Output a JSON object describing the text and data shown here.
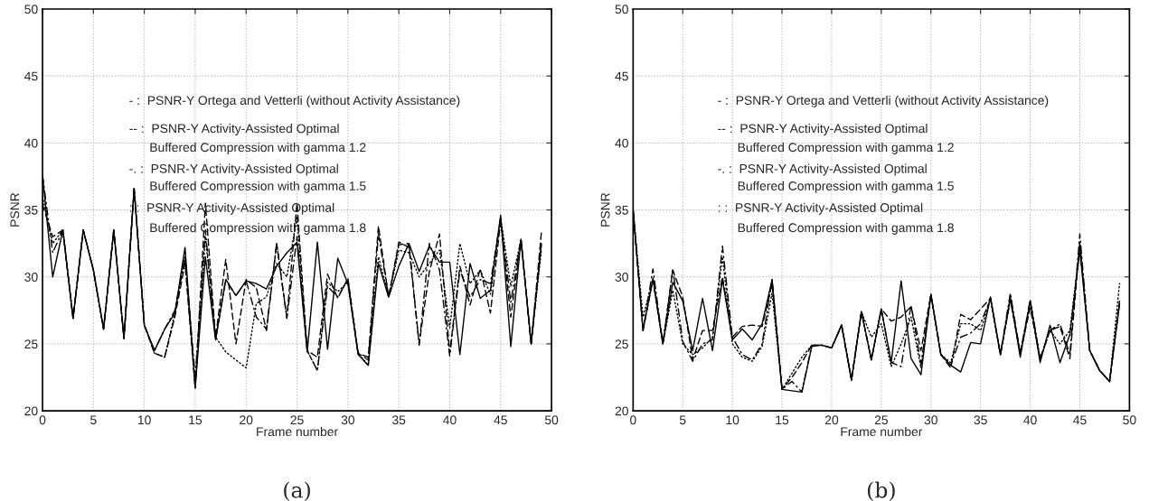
{
  "chart_data": [
    {
      "type": "line",
      "title": "(a)",
      "xlabel": "Frame number",
      "ylabel": "PSNR",
      "xlim": [
        0,
        50
      ],
      "ylim": [
        20,
        50
      ],
      "xticks": [
        0,
        5,
        10,
        15,
        20,
        25,
        30,
        35,
        40,
        45,
        50
      ],
      "yticks": [
        20,
        25,
        30,
        35,
        40,
        45,
        50
      ],
      "grid": true,
      "annotations": [
        "- :  PSNR-Y Ortega and Vetterli (without Activity Assistance)",
        "-- :  PSNR-Y Activity-Assisted Optimal",
        "Buffered Compression with gamma 1.2",
        "-. :  PSNR-Y Activity-Assisted Optimal",
        "Buffered Compression with gamma 1.5",
        ": :  PSNR-Y Activity-Assisted Optimal",
        "Buffered Compression with gamma 1.8"
      ],
      "x": [
        0,
        1,
        2,
        3,
        4,
        5,
        6,
        7,
        8,
        9,
        10,
        11,
        12,
        13,
        14,
        15,
        16,
        17,
        18,
        19,
        20,
        21,
        22,
        23,
        24,
        25,
        26,
        27,
        28,
        29,
        30,
        31,
        32,
        33,
        34,
        35,
        36,
        37,
        38,
        39,
        40,
        41,
        42,
        43,
        44,
        45,
        46,
        47,
        48,
        49
      ],
      "series": [
        {
          "color": "#000000",
          "line_style": "solid",
          "values": [
            37.6,
            30,
            33.5,
            26.9,
            33.5,
            30.5,
            26.1,
            33.5,
            25.4,
            36.6,
            26.4,
            24.5,
            26.1,
            27.3,
            32.2,
            21.7,
            31.5,
            25.3,
            29.8,
            28.6,
            29.7,
            29.5,
            29.1,
            30.8,
            31.8,
            32.6,
            24.4,
            32.6,
            24.6,
            31.4,
            29.5,
            24.2,
            23.4,
            31.0,
            28.5,
            30.8,
            32.5,
            30.4,
            32.3,
            31.1,
            31.1,
            24.2,
            31.0,
            28.4,
            29.0,
            34.6,
            24.8,
            32.8,
            25.0,
            32.4
          ]
        },
        {
          "color": "#000000",
          "line_style": "dashed",
          "values": [
            35.4,
            33,
            33.5,
            26.9,
            33.5,
            30.5,
            26.1,
            33.5,
            25.4,
            36.6,
            26.4,
            24.3,
            24.0,
            27,
            31.0,
            21.7,
            35.5,
            25.5,
            31.3,
            25,
            29.8,
            29.2,
            26,
            32.5,
            27,
            35.5,
            24.5,
            24,
            30.2,
            28.4,
            29.9,
            24.3,
            24,
            33.8,
            28.5,
            32.6,
            32.2,
            25,
            30.4,
            33.2,
            24.3,
            30.8,
            27.9,
            30.6,
            27.3,
            34.2,
            27,
            32.8,
            25,
            33.3
          ]
        },
        {
          "color": "#000000",
          "line_style": "dashdot",
          "values": [
            37.6,
            31.8,
            33.5,
            26.9,
            33.5,
            30.5,
            26.1,
            33.5,
            25.4,
            36.6,
            26.4,
            24.5,
            26.1,
            27.5,
            31.5,
            22.5,
            33.5,
            25.3,
            29.8,
            28.6,
            29.7,
            27,
            26.1,
            32.5,
            26.9,
            33,
            24.5,
            23,
            29.3,
            28.5,
            29.8,
            24.3,
            23.8,
            33.2,
            28.5,
            32.4,
            32.5,
            24.9,
            32.5,
            30.5,
            24.1,
            30.5,
            28.5,
            29.8,
            29.5,
            34.4,
            28.1,
            32.8,
            25,
            32.5
          ]
        },
        {
          "color": "#000000",
          "line_style": "dotted",
          "values": [
            36,
            32.5,
            33.5,
            26.9,
            33.5,
            30.5,
            26.1,
            33.5,
            25.4,
            36.6,
            26.4,
            24.3,
            24.0,
            27.3,
            31.5,
            21.7,
            33,
            25.5,
            24.4,
            23.8,
            23.2,
            28,
            28.5,
            31,
            30,
            34.5,
            24.5,
            23.0,
            29.6,
            28.9,
            29.6,
            24.3,
            23.4,
            31.5,
            28.5,
            32.0,
            31.8,
            30.0,
            31,
            32,
            26.2,
            32.5,
            29.5,
            30.5,
            28.7,
            34.4,
            29.3,
            32.8,
            25,
            32
          ]
        }
      ]
    },
    {
      "type": "line",
      "title": "(b)",
      "xlabel": "Frame number",
      "ylabel": "PSNR",
      "xlim": [
        0,
        50
      ],
      "ylim": [
        20,
        50
      ],
      "xticks": [
        0,
        5,
        10,
        15,
        20,
        25,
        30,
        35,
        40,
        45,
        50
      ],
      "yticks": [
        20,
        25,
        30,
        35,
        40,
        45,
        50
      ],
      "grid": true,
      "annotations": [
        "- :  PSNR-Y Ortega and Vetterli (without Activity Assistance)",
        "-- :  PSNR-Y Activity-Assisted Optimal",
        "Buffered Compression with gamma 1.2",
        "-. :  PSNR-Y Activity-Assisted Optimal",
        "Buffered Compression with gamma 1.5",
        ": :  PSNR-Y Activity-Assisted Optimal",
        "Buffered Compression with gamma 1.8"
      ],
      "x": [
        0,
        1,
        2,
        3,
        4,
        5,
        6,
        7,
        8,
        9,
        10,
        11,
        12,
        13,
        14,
        15,
        16,
        17,
        18,
        19,
        20,
        21,
        22,
        23,
        24,
        25,
        26,
        27,
        28,
        29,
        30,
        31,
        32,
        33,
        34,
        35,
        36,
        37,
        38,
        39,
        40,
        41,
        42,
        43,
        44,
        45,
        46,
        47,
        48,
        49
      ],
      "series": [
        {
          "color": "#000000",
          "line_style": "solid",
          "values": [
            35,
            26,
            29.9,
            25,
            29.6,
            28.2,
            24.5,
            28.4,
            24.5,
            29.8,
            25.3,
            26.1,
            25.3,
            26.5,
            29.8,
            21.6,
            21.5,
            21.4,
            24.8,
            24.9,
            24.7,
            26.4,
            22.3,
            27.4,
            23.8,
            27.6,
            23.6,
            29.7,
            23.9,
            22.7,
            28.7,
            24.2,
            23.4,
            22.9,
            25.1,
            25.0,
            28.5,
            24.2,
            28.5,
            24.0,
            28.2,
            23.6,
            26.4,
            23.6,
            25.7,
            32.0,
            24.5,
            23.0,
            22.2,
            28.0
          ]
        },
        {
          "color": "#000000",
          "line_style": "dashed",
          "values": [
            35,
            26,
            29.8,
            25,
            30.5,
            28.5,
            23.8,
            26.0,
            26,
            30.0,
            25.5,
            26.3,
            26.4,
            26.3,
            29.5,
            21.6,
            22.5,
            23.6,
            24.9,
            24.9,
            24.7,
            26.4,
            22.3,
            27.4,
            23.8,
            27.6,
            26.7,
            27,
            27.8,
            24.5,
            28.7,
            24.2,
            23.2,
            27.2,
            26.8,
            27.6,
            28.4,
            24.2,
            28.3,
            24.3,
            27.7,
            23.9,
            26.0,
            26.3,
            23.9,
            32.6,
            24.5,
            23.0,
            22.2,
            28.2
          ]
        },
        {
          "color": "#000000",
          "line_style": "dashdot",
          "values": [
            35,
            26,
            30.6,
            25,
            30.6,
            25.2,
            23.7,
            25.0,
            25.3,
            32.3,
            25.5,
            24.2,
            23.8,
            25,
            29.8,
            21.6,
            22.2,
            21.4,
            24.9,
            24.9,
            24.7,
            26.4,
            22.3,
            27.4,
            23.8,
            27.6,
            23.6,
            23.3,
            27.9,
            23.5,
            28.7,
            24.2,
            23.4,
            25.5,
            25.8,
            26.5,
            28.4,
            24.2,
            28.8,
            24.3,
            28.3,
            23.9,
            26.0,
            26.5,
            24.2,
            33.2,
            24.5,
            23.0,
            22.2,
            28.0
          ]
        },
        {
          "color": "#000000",
          "line_style": "dotted",
          "values": [
            35,
            27,
            29.8,
            25,
            29,
            25,
            24.2,
            24.7,
            25.5,
            31.5,
            25,
            24.0,
            23.7,
            24.8,
            28.8,
            21.6,
            22.8,
            24,
            24.9,
            24.9,
            24.7,
            26.4,
            22.3,
            27.4,
            25.5,
            26.5,
            23.3,
            25,
            27,
            23.2,
            28.7,
            24.2,
            23.6,
            26.5,
            26.5,
            26,
            28.4,
            24.2,
            28.3,
            24.3,
            28.2,
            23.9,
            26.0,
            25,
            26,
            32.3,
            24.5,
            23.0,
            22.2,
            29.5
          ]
        }
      ]
    }
  ]
}
